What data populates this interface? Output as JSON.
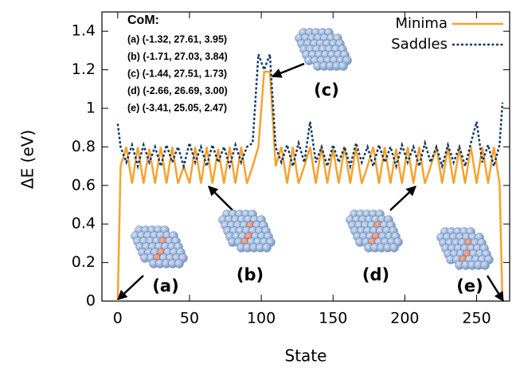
{
  "chart_data": {
    "type": "line",
    "y_label": "ΔE (eV)",
    "x_label": "State",
    "annotation_title": "CoM:",
    "annotation_lines": [
      "(a) (-1.32, 27.61, 3.95)",
      "(b) (-1.71, 27.03, 3.84)",
      "(c) (-1.44, 27.51, 1.73)",
      "(d) (-2.66, 26.69, 3.00)",
      "(e) (-3.41, 25.05, 2.47)"
    ],
    "structure_labels": [
      "(a)",
      "(b)",
      "(c)",
      "(d)",
      "(e)"
    ],
    "x": [
      0,
      2,
      6,
      10,
      14,
      18,
      22,
      26,
      30,
      34,
      38,
      42,
      46,
      50,
      54,
      58,
      62,
      66,
      70,
      74,
      78,
      82,
      86,
      90,
      94,
      98,
      102,
      106,
      110,
      114,
      118,
      122,
      126,
      130,
      134,
      138,
      142,
      146,
      150,
      154,
      158,
      162,
      166,
      170,
      174,
      178,
      182,
      186,
      190,
      194,
      198,
      202,
      206,
      210,
      214,
      218,
      222,
      226,
      230,
      234,
      238,
      242,
      246,
      250,
      254,
      258,
      262,
      266,
      268
    ],
    "series": [
      {
        "name": "Minima",
        "color": "#f5a32f",
        "dash": false,
        "values": [
          0,
          0.7,
          0.8,
          0.61,
          0.8,
          0.61,
          0.79,
          0.61,
          0.8,
          0.61,
          0.8,
          0.61,
          0.7,
          0.61,
          0.8,
          0.61,
          0.8,
          0.61,
          0.79,
          0.61,
          0.8,
          0.61,
          0.8,
          0.61,
          0.7,
          0.8,
          1.19,
          1.19,
          0.7,
          0.8,
          0.61,
          0.8,
          0.61,
          0.7,
          0.8,
          0.61,
          0.8,
          0.61,
          0.79,
          0.61,
          0.8,
          0.61,
          0.8,
          0.61,
          0.7,
          0.8,
          0.61,
          0.8,
          0.61,
          0.79,
          0.61,
          0.8,
          0.61,
          0.8,
          0.61,
          0.7,
          0.8,
          0.61,
          0.8,
          0.61,
          0.79,
          0.61,
          0.8,
          0.61,
          0.8,
          0.61,
          0.8,
          0.61,
          0
        ]
      },
      {
        "name": "Saddles",
        "color": "#123a66",
        "dash": true,
        "values": [
          0.92,
          0.8,
          0.72,
          0.81,
          0.7,
          0.81,
          0.72,
          0.8,
          0.7,
          0.81,
          0.72,
          0.8,
          0.7,
          0.82,
          0.72,
          0.8,
          0.7,
          0.81,
          0.72,
          0.8,
          0.7,
          0.81,
          0.72,
          0.8,
          0.82,
          1.28,
          1.2,
          1.28,
          0.8,
          0.72,
          0.81,
          0.7,
          0.82,
          0.72,
          0.93,
          0.72,
          0.8,
          0.7,
          0.81,
          0.72,
          0.8,
          0.7,
          0.82,
          0.72,
          0.8,
          0.7,
          0.81,
          0.72,
          0.8,
          0.7,
          0.81,
          0.72,
          0.8,
          0.7,
          0.82,
          0.72,
          0.8,
          0.7,
          0.81,
          0.72,
          0.8,
          0.7,
          0.82,
          0.93,
          0.72,
          0.81,
          0.7,
          0.81,
          1.03
        ]
      }
    ],
    "xlim": [
      -11,
      273
    ],
    "ylim": [
      0,
      1.5
    ],
    "xticks": [
      0,
      50,
      100,
      150,
      200,
      250
    ],
    "yticks": [
      0,
      0.2,
      0.4,
      0.6,
      0.8,
      1,
      1.2,
      1.4
    ],
    "legend": "top-right"
  }
}
